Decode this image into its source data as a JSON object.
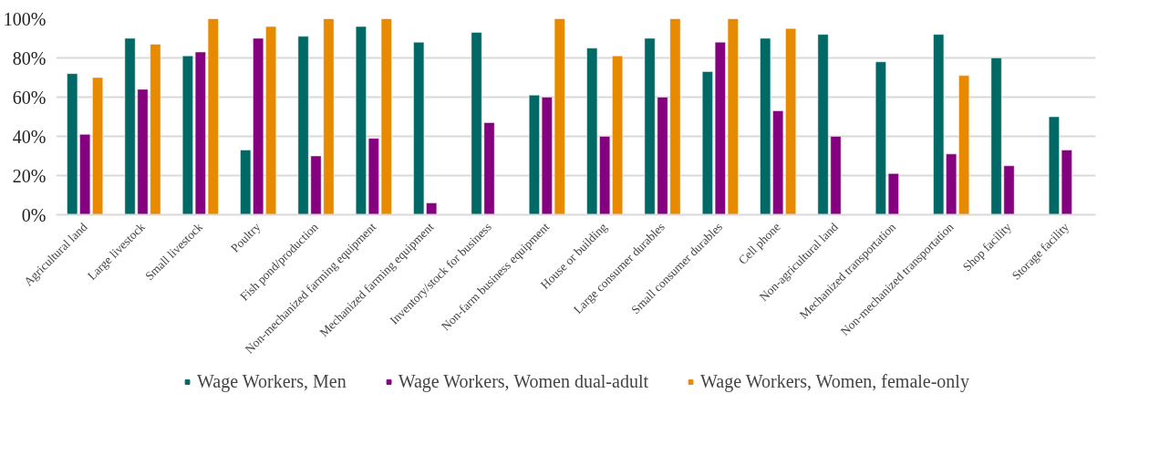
{
  "chart_data": {
    "type": "bar",
    "categories": [
      "Agricultural land",
      "Large livestock",
      "Small livestock",
      "Poultry",
      "Fish pond/production",
      "Non-mechanized farming equipment",
      "Mechanized farming equipment",
      "Inventory/stock for business",
      "Non-farm business equipment",
      "House or building",
      "Large consumer durables",
      "Small consumer durables",
      "Cell phone",
      "Non-agricultural land",
      "Mechanized transportation",
      "Non-mechanized transportation",
      "Shop facility",
      "Storage facility"
    ],
    "series": [
      {
        "name": "Wage Workers, Men",
        "color": "#006966",
        "values": [
          72,
          90,
          81,
          33,
          91,
          96,
          88,
          93,
          61,
          85,
          90,
          73,
          90,
          92,
          78,
          92,
          80,
          50
        ]
      },
      {
        "name": "Wage Workers, Women dual-adult",
        "color": "#84007e",
        "values": [
          41,
          64,
          83,
          90,
          30,
          39,
          6,
          47,
          60,
          40,
          60,
          88,
          53,
          40,
          21,
          31,
          25,
          33
        ]
      },
      {
        "name": "Wage Workers, Women, female-only",
        "color": "#e88a00",
        "values": [
          70,
          87,
          100,
          96,
          100,
          100,
          null,
          null,
          100,
          81,
          100,
          100,
          95,
          null,
          null,
          71,
          null,
          null
        ]
      }
    ],
    "ylim": [
      0,
      100
    ],
    "yticks": [
      {
        "value": 0,
        "label": "0%"
      },
      {
        "value": 20,
        "label": "20%"
      },
      {
        "value": 40,
        "label": "40%"
      },
      {
        "value": 60,
        "label": "60%"
      },
      {
        "value": 80,
        "label": "80%"
      },
      {
        "value": 100,
        "label": "100%"
      }
    ],
    "grid": "y",
    "legend": "bottom"
  }
}
